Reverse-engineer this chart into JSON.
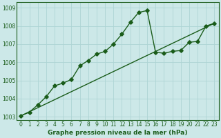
{
  "xlabel": "Graphe pression niveau de la mer (hPa)",
  "xlim": [
    -0.5,
    23.5
  ],
  "ylim": [
    1002.8,
    1009.3
  ],
  "yticks": [
    1003,
    1004,
    1005,
    1006,
    1007,
    1008,
    1009
  ],
  "xticks": [
    0,
    1,
    2,
    3,
    4,
    5,
    6,
    7,
    8,
    9,
    10,
    11,
    12,
    13,
    14,
    15,
    16,
    17,
    18,
    19,
    20,
    21,
    22,
    23
  ],
  "bg_color": "#cce8e8",
  "grid_color": "#aed4d4",
  "line_color": "#1a5c1a",
  "curve_x": [
    0,
    1,
    2,
    3,
    4,
    5,
    6,
    7,
    8,
    9,
    10,
    11,
    12,
    13,
    14,
    15,
    16,
    17,
    18,
    19,
    20,
    21,
    22,
    23
  ],
  "curve_y": [
    1003.05,
    1003.25,
    1003.65,
    1004.1,
    1004.7,
    1004.85,
    1005.05,
    1005.8,
    1006.1,
    1006.45,
    1006.6,
    1007.0,
    1007.55,
    1008.2,
    1008.75,
    1008.85,
    1006.55,
    1006.5,
    1006.6,
    1006.65,
    1007.1,
    1007.15,
    1008.0,
    1008.15
  ],
  "line2_x": [
    0,
    23
  ],
  "line2_y": [
    1003.05,
    1008.15
  ],
  "marker": "D",
  "markersize": 2.8,
  "linewidth": 1.0,
  "tick_fontsize": 5.5,
  "xlabel_fontsize": 6.5
}
